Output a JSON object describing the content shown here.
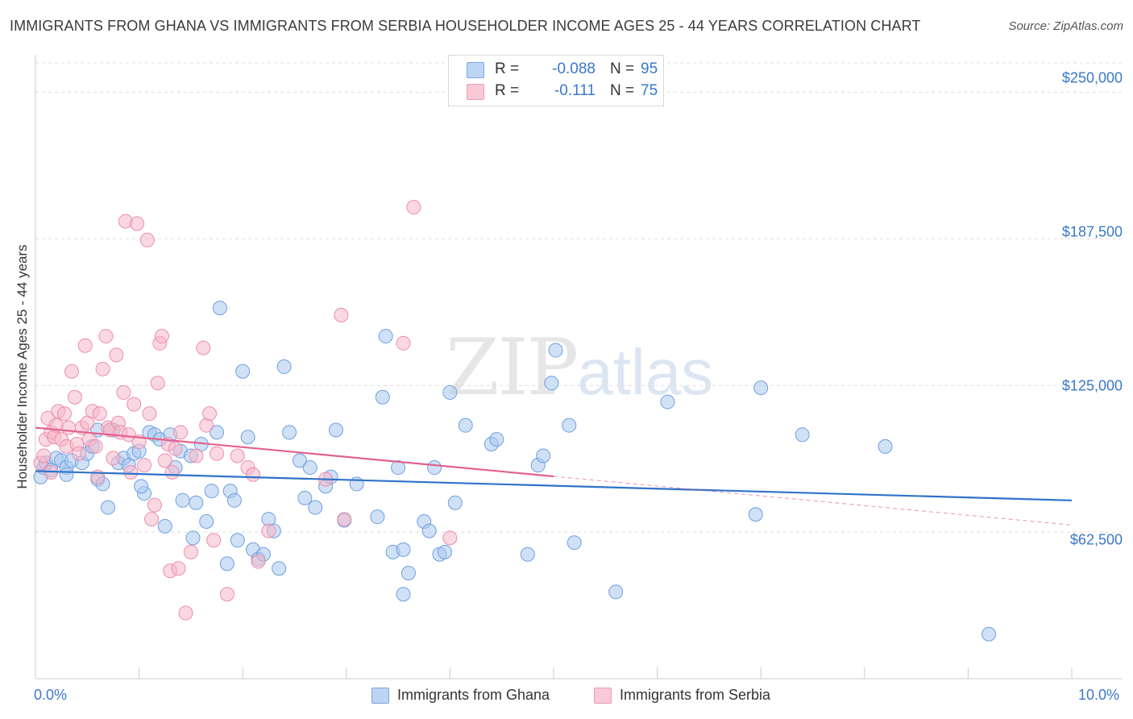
{
  "header": {
    "title": "IMMIGRANTS FROM GHANA VS IMMIGRANTS FROM SERBIA HOUSEHOLDER INCOME AGES 25 - 44 YEARS CORRELATION CHART",
    "source": "Source: ZipAtlas.com"
  },
  "watermark": {
    "zip": "ZIP",
    "atlas": "atlas"
  },
  "legend": {
    "ghana": {
      "r_label": "R =",
      "r_value": "-0.088",
      "n_label": "N =",
      "n_value": "95"
    },
    "serbia": {
      "r_label": "R =",
      "r_value": "-0.111",
      "n_label": "N =",
      "n_value": "75"
    }
  },
  "bottom_legend": {
    "ghana": "Immigrants from Ghana",
    "serbia": "Immigrants from Serbia"
  },
  "colors": {
    "ghana_fill": "#a9c8ef",
    "ghana_stroke": "#6f9fe0",
    "ghana_line": "#2f72c9",
    "serbia_fill": "#f6b8cb",
    "serbia_stroke": "#ec8eac",
    "serbia_line": "#e2628f",
    "axis_text": "#3b78c9",
    "grid": "#dddddd"
  },
  "chart_data": {
    "type": "scatter",
    "title": "IMMIGRANTS FROM GHANA VS IMMIGRANTS FROM SERBIA HOUSEHOLDER INCOME AGES 25 - 44 YEARS CORRELATION CHART",
    "xlabel": "",
    "ylabel": "Householder Income Ages 25 - 44 years",
    "xlim": [
      0,
      10
    ],
    "ylim": [
      0,
      262500
    ],
    "x_tick_labels": [
      "0.0%",
      "10.0%"
    ],
    "y_ticks": [
      62500,
      125000,
      187500,
      250000
    ],
    "y_tick_labels": [
      "$62,500",
      "$125,000",
      "$187,500",
      "$250,000"
    ],
    "grid": true,
    "legend_position": "top-center",
    "series": [
      {
        "name": "Immigrants from Ghana",
        "r": -0.088,
        "n": 95,
        "trend": {
          "x0": 0,
          "y0": 88500,
          "x1": 10,
          "y1": 76000,
          "solid_to": 10
        },
        "points": [
          [
            0.05,
            86000
          ],
          [
            0.08,
            90000
          ],
          [
            0.1,
            92000
          ],
          [
            0.15,
            89000
          ],
          [
            0.2,
            94000
          ],
          [
            0.25,
            93000
          ],
          [
            0.3,
            90000
          ],
          [
            0.35,
            93000
          ],
          [
            0.45,
            92000
          ],
          [
            0.5,
            96000
          ],
          [
            0.55,
            99000
          ],
          [
            0.6,
            85000
          ],
          [
            0.65,
            83000
          ],
          [
            0.7,
            73000
          ],
          [
            0.75,
            106000
          ],
          [
            0.8,
            92000
          ],
          [
            0.85,
            94000
          ],
          [
            0.9,
            91000
          ],
          [
            0.95,
            96000
          ],
          [
            1.0,
            97000
          ],
          [
            1.05,
            79000
          ],
          [
            1.02,
            82000
          ],
          [
            1.1,
            105000
          ],
          [
            1.15,
            104000
          ],
          [
            1.2,
            102000
          ],
          [
            1.25,
            65000
          ],
          [
            1.3,
            104000
          ],
          [
            1.35,
            90000
          ],
          [
            1.4,
            97000
          ],
          [
            1.42,
            76000
          ],
          [
            1.5,
            95000
          ],
          [
            1.52,
            60000
          ],
          [
            1.55,
            75000
          ],
          [
            1.6,
            100000
          ],
          [
            1.65,
            67000
          ],
          [
            1.7,
            80000
          ],
          [
            1.75,
            105000
          ],
          [
            1.78,
            158000
          ],
          [
            1.85,
            49000
          ],
          [
            1.88,
            80000
          ],
          [
            1.92,
            76000
          ],
          [
            1.95,
            59000
          ],
          [
            2.0,
            131000
          ],
          [
            2.05,
            103000
          ],
          [
            2.1,
            55000
          ],
          [
            2.15,
            51000
          ],
          [
            2.2,
            53000
          ],
          [
            2.25,
            68000
          ],
          [
            2.3,
            63000
          ],
          [
            2.35,
            47000
          ],
          [
            2.4,
            133000
          ],
          [
            2.45,
            105000
          ],
          [
            2.55,
            93000
          ],
          [
            2.6,
            77000
          ],
          [
            2.65,
            90000
          ],
          [
            2.7,
            73000
          ],
          [
            2.8,
            82000
          ],
          [
            2.85,
            86000
          ],
          [
            2.9,
            106000
          ],
          [
            2.98,
            67500
          ],
          [
            3.1,
            83000
          ],
          [
            3.3,
            69000
          ],
          [
            3.35,
            120000
          ],
          [
            3.38,
            146000
          ],
          [
            3.45,
            54000
          ],
          [
            3.5,
            90000
          ],
          [
            3.55,
            55000
          ],
          [
            3.6,
            45000
          ],
          [
            3.55,
            36000
          ],
          [
            3.75,
            67000
          ],
          [
            3.8,
            63000
          ],
          [
            3.85,
            90000
          ],
          [
            3.9,
            53000
          ],
          [
            3.95,
            54000
          ],
          [
            4.0,
            122000
          ],
          [
            4.05,
            75000
          ],
          [
            4.15,
            108000
          ],
          [
            4.4,
            100000
          ],
          [
            4.45,
            102000
          ],
          [
            4.75,
            53000
          ],
          [
            4.85,
            91000
          ],
          [
            4.9,
            95000
          ],
          [
            4.98,
            126000
          ],
          [
            5.02,
            140000
          ],
          [
            5.15,
            108000
          ],
          [
            5.2,
            58000
          ],
          [
            5.6,
            37000
          ],
          [
            6.1,
            118000
          ],
          [
            6.95,
            70000
          ],
          [
            7.0,
            124000
          ],
          [
            7.4,
            104000
          ],
          [
            8.2,
            99000
          ],
          [
            9.2,
            19000
          ],
          [
            0.6,
            106000
          ],
          [
            0.3,
            87000
          ]
        ]
      },
      {
        "name": "Immigrants from Serbia",
        "r": -0.111,
        "n": 75,
        "trend": {
          "x0": 0,
          "y0": 107000,
          "x1": 10,
          "y1": 65500,
          "solid_to": 5.0
        },
        "points": [
          [
            0.05,
            92000
          ],
          [
            0.08,
            95000
          ],
          [
            0.1,
            102000
          ],
          [
            0.12,
            111000
          ],
          [
            0.15,
            105000
          ],
          [
            0.18,
            103000
          ],
          [
            0.2,
            108000
          ],
          [
            0.22,
            114000
          ],
          [
            0.25,
            102000
          ],
          [
            0.28,
            113000
          ],
          [
            0.3,
            99000
          ],
          [
            0.32,
            107000
          ],
          [
            0.35,
            131000
          ],
          [
            0.38,
            120000
          ],
          [
            0.4,
            100000
          ],
          [
            0.42,
            96000
          ],
          [
            0.45,
            107000
          ],
          [
            0.48,
            142000
          ],
          [
            0.5,
            109000
          ],
          [
            0.52,
            102000
          ],
          [
            0.55,
            114000
          ],
          [
            0.58,
            99000
          ],
          [
            0.6,
            86000
          ],
          [
            0.62,
            113000
          ],
          [
            0.65,
            132000
          ],
          [
            0.68,
            146000
          ],
          [
            0.7,
            107000
          ],
          [
            0.72,
            106000
          ],
          [
            0.75,
            94000
          ],
          [
            0.78,
            138000
          ],
          [
            0.8,
            109000
          ],
          [
            0.82,
            105000
          ],
          [
            0.85,
            122000
          ],
          [
            0.87,
            195000
          ],
          [
            0.9,
            104000
          ],
          [
            0.92,
            88000
          ],
          [
            0.95,
            117000
          ],
          [
            0.98,
            194000
          ],
          [
            1.0,
            101000
          ],
          [
            1.05,
            91000
          ],
          [
            1.08,
            187000
          ],
          [
            1.1,
            113000
          ],
          [
            1.12,
            68000
          ],
          [
            1.15,
            74000
          ],
          [
            1.18,
            126000
          ],
          [
            1.2,
            143000
          ],
          [
            1.22,
            146000
          ],
          [
            1.25,
            93000
          ],
          [
            1.28,
            100000
          ],
          [
            1.3,
            46000
          ],
          [
            1.32,
            88000
          ],
          [
            1.35,
            98000
          ],
          [
            1.38,
            47000
          ],
          [
            1.4,
            105000
          ],
          [
            1.45,
            28000
          ],
          [
            1.5,
            54000
          ],
          [
            1.55,
            95000
          ],
          [
            1.62,
            141000
          ],
          [
            1.65,
            108000
          ],
          [
            1.68,
            113000
          ],
          [
            1.72,
            59000
          ],
          [
            1.75,
            96000
          ],
          [
            1.85,
            36000
          ],
          [
            1.95,
            95000
          ],
          [
            2.05,
            90000
          ],
          [
            2.1,
            87000
          ],
          [
            2.15,
            50000
          ],
          [
            2.25,
            63000
          ],
          [
            2.8,
            85000
          ],
          [
            2.98,
            68000
          ],
          [
            2.95,
            155000
          ],
          [
            3.55,
            143000
          ],
          [
            3.65,
            201000
          ],
          [
            4.0,
            60000
          ],
          [
            0.15,
            88000
          ]
        ]
      }
    ]
  }
}
